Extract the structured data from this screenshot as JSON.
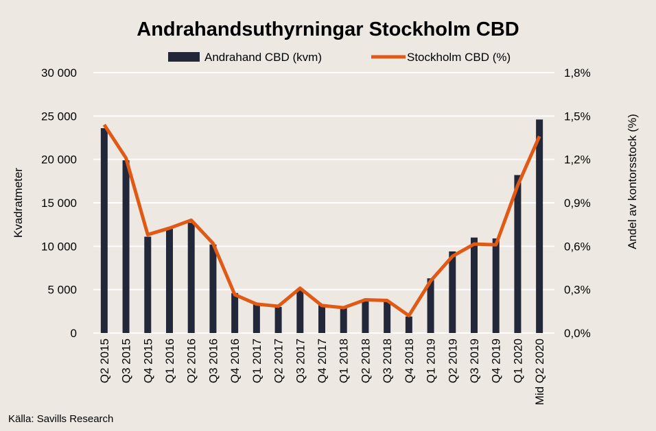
{
  "chart_data": {
    "type": "bar+line",
    "title": "Andrahandsuthyrningar Stockholm CBD",
    "categories": [
      "Q2 2015",
      "Q3 2015",
      "Q4 2015",
      "Q1 2016",
      "Q2 2016",
      "Q3 2016",
      "Q4 2016",
      "Q1 2017",
      "Q2 2017",
      "Q3 2017",
      "Q4 2017",
      "Q1 2018",
      "Q2 2018",
      "Q3 2018",
      "Q4 2018",
      "Q1 2019",
      "Q2 2019",
      "Q3 2019",
      "Q4 2019",
      "Q1 2020",
      "Mid Q2 2020"
    ],
    "series": [
      {
        "name": "Andrahand CBD (kvm)",
        "type": "bar",
        "axis": "left",
        "color": "#22273a",
        "values": [
          23600,
          19900,
          11100,
          12000,
          12700,
          10200,
          4600,
          3400,
          3000,
          4900,
          3200,
          2900,
          3700,
          3600,
          1900,
          6300,
          9400,
          11000,
          10900,
          18200,
          24600
        ]
      },
      {
        "name": "Stockholm CBD (%)",
        "type": "line",
        "axis": "right",
        "color": "#e05a16",
        "values": [
          1.44,
          1.21,
          0.68,
          0.725,
          0.78,
          0.62,
          0.265,
          0.2,
          0.185,
          0.31,
          0.19,
          0.175,
          0.23,
          0.225,
          0.12,
          0.36,
          0.53,
          0.615,
          0.61,
          1.02,
          1.36
        ]
      }
    ],
    "ylabel": "Kvadratmeter",
    "y2label": "Andel av kontorsstock (%)",
    "ylim": [
      0,
      30000
    ],
    "y2lim": [
      0,
      1.8
    ],
    "yticks": [
      "0",
      "5 000",
      "10 000",
      "15 000",
      "20 000",
      "25 000",
      "30 000"
    ],
    "y2ticks": [
      "0,0%",
      "0,3%",
      "0,6%",
      "0,9%",
      "1,2%",
      "1,5%",
      "1,8%"
    ],
    "grid": true,
    "legend": "top-center"
  },
  "source": "Källa: Savills Research"
}
